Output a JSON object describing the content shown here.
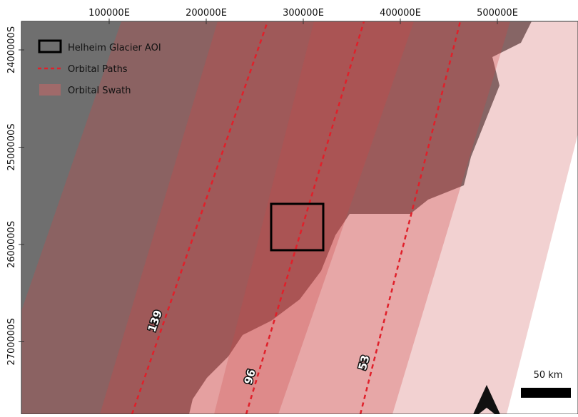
{
  "map": {
    "x_labels": [
      "100000E",
      "200000E",
      "300000E",
      "400000E",
      "500000E"
    ],
    "y_labels": [
      "2400000S",
      "2500000S",
      "2600000S",
      "2700000S"
    ],
    "legend": [
      "Helheim Glacier AOI",
      "Orbital Paths",
      "Orbital Swath"
    ],
    "path_labels": [
      "139",
      "96",
      "53"
    ],
    "scale_bar": "50 km"
  }
}
